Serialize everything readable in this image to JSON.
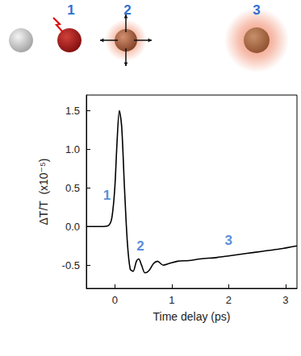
{
  "diagram": {
    "labels": [
      "1",
      "2",
      "3"
    ],
    "color": "#2f6fd0"
  },
  "chart_data": {
    "type": "line",
    "x": [
      -0.5,
      -0.4,
      -0.3,
      -0.2,
      -0.1,
      -0.05,
      0,
      0.04,
      0.08,
      0.12,
      0.17,
      0.22,
      0.27,
      0.32,
      0.38,
      0.42,
      0.47,
      0.53,
      0.6,
      0.68,
      0.75,
      0.85,
      0.95,
      1.1,
      1.3,
      1.5,
      1.8,
      2.0,
      2.3,
      2.6,
      2.9,
      3.2
    ],
    "values": [
      0,
      0,
      0,
      0,
      0.02,
      0.12,
      0.5,
      1.1,
      1.5,
      1.3,
      0.5,
      -0.2,
      -0.55,
      -0.58,
      -0.45,
      -0.42,
      -0.5,
      -0.6,
      -0.57,
      -0.48,
      -0.45,
      -0.5,
      -0.48,
      -0.45,
      -0.44,
      -0.42,
      -0.4,
      -0.38,
      -0.35,
      -0.32,
      -0.29,
      -0.25
    ],
    "color": "#000000",
    "xlabel": "Time delay (ps)",
    "ylabel": "ΔT/T  (x10⁻⁵)",
    "xlim": [
      -0.5,
      3.2
    ],
    "xticks": [
      0,
      1,
      2,
      3
    ],
    "ylim": [
      -0.8,
      1.7
    ],
    "yticks": [
      -0.5,
      {
        "value": 0,
        "label": "0.0"
      },
      0.5,
      {
        "value": 1,
        "label": "1.0"
      },
      1.5
    ],
    "grid": false,
    "annotations": [
      {
        "text": "1",
        "x": -0.14,
        "y": 0.4,
        "color": "#2f6fd0"
      },
      {
        "text": "2",
        "x": 0.45,
        "y": -0.25,
        "color": "#2f6fd0"
      },
      {
        "text": "3",
        "x": 2.0,
        "y": -0.18,
        "color": "#2f6fd0"
      }
    ]
  }
}
